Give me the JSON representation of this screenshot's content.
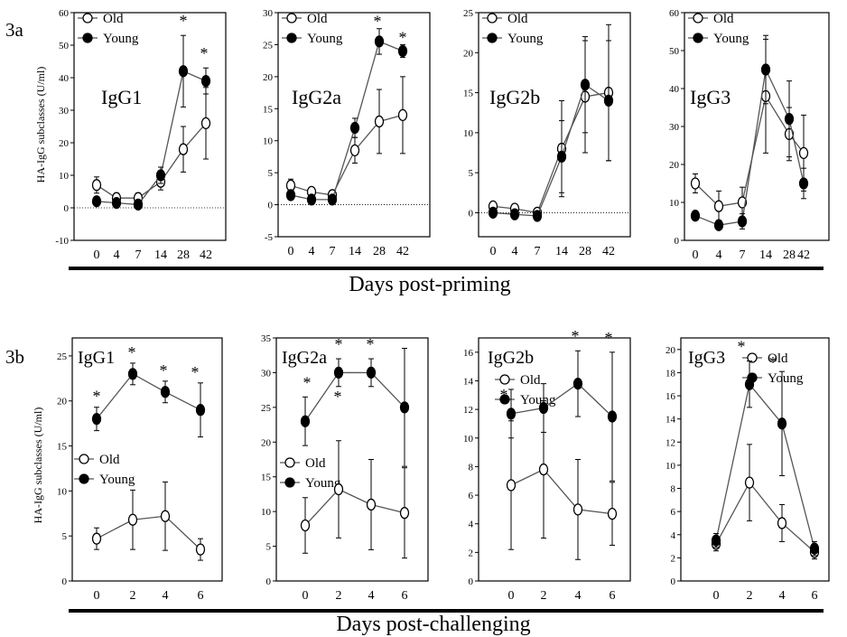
{
  "figure": {
    "row_a": {
      "label": "3a",
      "xlabel": "Days post-priming",
      "ylabel": "HA-IgG subclasses (U/ml)"
    },
    "row_b": {
      "label": "3b",
      "xlabel": "Days post-challenging",
      "ylabel": "HA-IgG subclasses (U/ml)"
    },
    "legend": {
      "old": "Old",
      "young": "Young"
    },
    "colors": {
      "line": "#555555",
      "marker": "#000000",
      "axis": "#000000"
    }
  },
  "chart_data": [
    {
      "type": "line",
      "row": "3a",
      "title": "IgG1",
      "x": [
        0,
        4,
        7,
        14,
        28,
        42
      ],
      "categories": [
        "0",
        "4",
        "7",
        "14",
        "28",
        "42"
      ],
      "ylim": [
        -10,
        60
      ],
      "yticks": [
        -10,
        0,
        10,
        20,
        30,
        40,
        50,
        60
      ],
      "zero_line": true,
      "legend_position": "top-left",
      "series": [
        {
          "name": "Old",
          "marker": "open-circle",
          "values": [
            7,
            3,
            3,
            8,
            18,
            26
          ],
          "errors": [
            2.5,
            1.5,
            1.5,
            2.5,
            7,
            11
          ]
        },
        {
          "name": "Young",
          "marker": "filled-circle",
          "values": [
            2,
            1.5,
            1,
            10,
            42,
            39
          ],
          "errors": [
            1,
            1,
            1,
            2.5,
            11,
            4
          ]
        }
      ],
      "annotations": [
        {
          "text": "*",
          "x": 28
        },
        {
          "text": "*",
          "x": 42
        }
      ]
    },
    {
      "type": "line",
      "row": "3a",
      "title": "IgG2a",
      "x": [
        0,
        4,
        7,
        14,
        28,
        42
      ],
      "categories": [
        "0",
        "4",
        "7",
        "14",
        "28",
        "42"
      ],
      "ylim": [
        -5,
        30
      ],
      "yticks": [
        -5,
        0,
        5,
        10,
        15,
        20,
        25,
        30
      ],
      "zero_line": true,
      "legend_position": "top-left",
      "series": [
        {
          "name": "Old",
          "marker": "open-circle",
          "values": [
            3,
            2,
            1.5,
            8.5,
            13,
            14
          ],
          "errors": [
            1,
            0.5,
            0.5,
            2,
            5,
            6
          ]
        },
        {
          "name": "Young",
          "marker": "filled-circle",
          "values": [
            1.5,
            0.8,
            0.8,
            12,
            25.5,
            24
          ],
          "errors": [
            0.5,
            0.3,
            0.3,
            1.5,
            2,
            1
          ]
        }
      ],
      "annotations": [
        {
          "text": "*",
          "x": 28
        },
        {
          "text": "*",
          "x": 42
        }
      ]
    },
    {
      "type": "line",
      "row": "3a",
      "title": "IgG2b",
      "x": [
        0,
        4,
        7,
        14,
        28,
        42
      ],
      "categories": [
        "0",
        "4",
        "7",
        "14",
        "28",
        "42"
      ],
      "ylim": [
        -3,
        25
      ],
      "yticks": [
        0,
        5,
        10,
        15,
        20,
        25
      ],
      "zero_line": true,
      "legend_position": "top-left",
      "series": [
        {
          "name": "Old",
          "marker": "open-circle",
          "values": [
            0.8,
            0.5,
            0,
            8,
            14.5,
            15
          ],
          "errors": [
            0.3,
            0.3,
            0.2,
            6,
            7,
            8.5
          ]
        },
        {
          "name": "Young",
          "marker": "filled-circle",
          "values": [
            0,
            -0.2,
            -0.4,
            7,
            16,
            14
          ],
          "errors": [
            0.2,
            0.2,
            0.2,
            4.5,
            6,
            7.5
          ]
        }
      ],
      "annotations": []
    },
    {
      "type": "line",
      "row": "3a",
      "title": "IgG3",
      "x": [
        0,
        4,
        7,
        14,
        28,
        42
      ],
      "categories": [
        "0",
        "4",
        "7",
        "14",
        "28",
        "42"
      ],
      "ylim": [
        0,
        60
      ],
      "yticks": [
        0,
        10,
        20,
        30,
        40,
        50,
        60
      ],
      "zero_line": false,
      "legend_position": "top-left",
      "series": [
        {
          "name": "Old",
          "marker": "open-circle",
          "values": [
            15,
            9,
            10,
            38,
            28,
            23
          ],
          "errors": [
            2.5,
            4,
            4,
            15,
            7,
            10
          ]
        },
        {
          "name": "Young",
          "marker": "filled-circle",
          "values": [
            6.5,
            4,
            5,
            45,
            32,
            15
          ],
          "errors": [
            1,
            1,
            2,
            9,
            10,
            4
          ]
        }
      ],
      "annotations": []
    },
    {
      "type": "line",
      "row": "3b",
      "title": "IgG1",
      "x": [
        0,
        2,
        4,
        6
      ],
      "categories": [
        "0",
        "2",
        "4",
        "6"
      ],
      "ylim": [
        0,
        27
      ],
      "yticks": [
        0,
        5,
        10,
        15,
        20,
        25
      ],
      "zero_line": false,
      "legend_position": "middle-left",
      "series": [
        {
          "name": "Old",
          "marker": "open-circle",
          "values": [
            4.7,
            6.8,
            7.2,
            3.5
          ],
          "errors": [
            1.2,
            3.3,
            3.8,
            1.2
          ]
        },
        {
          "name": "Young",
          "marker": "filled-circle",
          "values": [
            18,
            23,
            21,
            19
          ],
          "errors": [
            1.3,
            1.2,
            1.2,
            3
          ]
        }
      ],
      "annotations": [
        {
          "text": "*",
          "x": 0
        },
        {
          "text": "*",
          "x": 2
        },
        {
          "text": "*",
          "x": 4
        },
        {
          "text": "*",
          "x": 6
        }
      ]
    },
    {
      "type": "line",
      "row": "3b",
      "title": "IgG2a",
      "x": [
        0,
        2,
        4,
        6
      ],
      "categories": [
        "0",
        "2",
        "4",
        "6"
      ],
      "ylim": [
        0,
        35
      ],
      "yticks": [
        0,
        5,
        10,
        15,
        20,
        25,
        30,
        35
      ],
      "zero_line": false,
      "legend_position": "middle-left",
      "series": [
        {
          "name": "Old",
          "marker": "open-circle",
          "values": [
            8,
            13.2,
            11,
            9.8
          ],
          "errors": [
            4,
            7,
            6.5,
            6.5
          ]
        },
        {
          "name": "Young",
          "marker": "filled-circle",
          "values": [
            23,
            30,
            30,
            25
          ],
          "errors": [
            3.5,
            2,
            2,
            8.5
          ]
        }
      ],
      "annotations": [
        {
          "text": "*",
          "x": 0
        },
        {
          "text": "*",
          "x": 2
        },
        {
          "text": "*",
          "x": 4
        },
        {
          "text": "*",
          "x": 2
        }
      ]
    },
    {
      "type": "line",
      "row": "3b",
      "title": "IgG2b",
      "x": [
        0,
        2,
        4,
        6
      ],
      "categories": [
        "0",
        "2",
        "4",
        "6"
      ],
      "ylim": [
        0,
        17
      ],
      "yticks": [
        0,
        2,
        4,
        6,
        8,
        10,
        12,
        14,
        16
      ],
      "zero_line": false,
      "legend_position": "top-left",
      "series": [
        {
          "name": "Old",
          "marker": "open-circle",
          "values": [
            6.7,
            7.8,
            5,
            4.7
          ],
          "errors": [
            4.5,
            4.8,
            3.5,
            2.2
          ]
        },
        {
          "name": "Young",
          "marker": "filled-circle",
          "values": [
            11.7,
            12.1,
            13.8,
            11.5
          ],
          "errors": [
            1.7,
            1.7,
            2.3,
            4.5
          ]
        }
      ],
      "annotations": [
        {
          "text": "*",
          "x": 0
        },
        {
          "text": "*",
          "x": 4
        },
        {
          "text": "*",
          "x": 6
        }
      ]
    },
    {
      "type": "line",
      "row": "3b",
      "title": "IgG3",
      "x": [
        0,
        2,
        4,
        6
      ],
      "categories": [
        "0",
        "2",
        "4",
        "6"
      ],
      "ylim": [
        0,
        21
      ],
      "yticks": [
        0,
        2,
        4,
        6,
        8,
        10,
        12,
        14,
        16,
        18,
        20
      ],
      "zero_line": false,
      "legend_position": "top-right",
      "series": [
        {
          "name": "Old",
          "marker": "open-circle",
          "values": [
            3.2,
            8.5,
            5,
            2.5
          ],
          "errors": [
            0.6,
            3.3,
            1.6,
            0.6
          ]
        },
        {
          "name": "Young",
          "marker": "filled-circle",
          "values": [
            3.5,
            17,
            13.6,
            2.8
          ],
          "errors": [
            0.6,
            2,
            4.5,
            0.6
          ]
        }
      ],
      "annotations": [
        {
          "text": "*",
          "x": 2
        },
        {
          "text": "*",
          "x": 4
        }
      ]
    }
  ]
}
